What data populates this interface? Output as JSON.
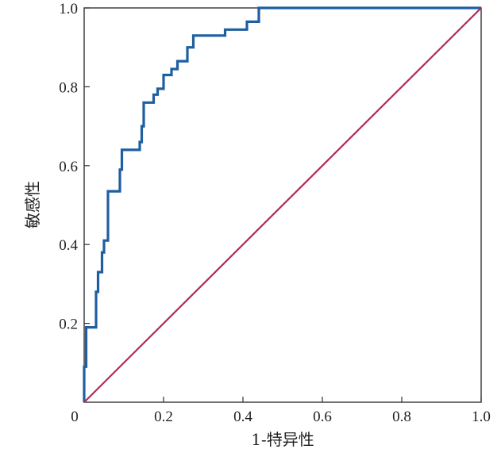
{
  "chart_data": {
    "type": "line",
    "title": "",
    "xlabel": "1-特异性",
    "ylabel": "敏感性",
    "xlim": [
      0,
      1
    ],
    "ylim": [
      0,
      1
    ],
    "x_ticks": [
      "0",
      "0.2",
      "0.4",
      "0.6",
      "0.8",
      "1.0"
    ],
    "y_ticks": [
      "0.2",
      "0.4",
      "0.6",
      "0.8",
      "1.0"
    ],
    "grid": false,
    "legend": "none",
    "series": [
      {
        "color": "#1f5fa0",
        "step": true,
        "points": [
          [
            0.0,
            0.0
          ],
          [
            0.0,
            0.09
          ],
          [
            0.005,
            0.09
          ],
          [
            0.005,
            0.19
          ],
          [
            0.03,
            0.19
          ],
          [
            0.03,
            0.28
          ],
          [
            0.035,
            0.28
          ],
          [
            0.035,
            0.33
          ],
          [
            0.045,
            0.33
          ],
          [
            0.045,
            0.38
          ],
          [
            0.05,
            0.38
          ],
          [
            0.05,
            0.41
          ],
          [
            0.06,
            0.41
          ],
          [
            0.06,
            0.535
          ],
          [
            0.09,
            0.535
          ],
          [
            0.09,
            0.59
          ],
          [
            0.095,
            0.59
          ],
          [
            0.095,
            0.64
          ],
          [
            0.14,
            0.64
          ],
          [
            0.14,
            0.66
          ],
          [
            0.145,
            0.66
          ],
          [
            0.145,
            0.7
          ],
          [
            0.15,
            0.7
          ],
          [
            0.15,
            0.76
          ],
          [
            0.175,
            0.76
          ],
          [
            0.175,
            0.78
          ],
          [
            0.185,
            0.78
          ],
          [
            0.185,
            0.795
          ],
          [
            0.2,
            0.795
          ],
          [
            0.2,
            0.83
          ],
          [
            0.22,
            0.83
          ],
          [
            0.22,
            0.845
          ],
          [
            0.235,
            0.845
          ],
          [
            0.235,
            0.865
          ],
          [
            0.26,
            0.865
          ],
          [
            0.26,
            0.9
          ],
          [
            0.275,
            0.9
          ],
          [
            0.275,
            0.93
          ],
          [
            0.355,
            0.93
          ],
          [
            0.355,
            0.945
          ],
          [
            0.41,
            0.945
          ],
          [
            0.41,
            0.965
          ],
          [
            0.44,
            0.965
          ],
          [
            0.44,
            1.0
          ],
          [
            1.0,
            1.0
          ]
        ]
      },
      {
        "color": "#b02a5c",
        "step": false,
        "points": [
          [
            0.0,
            0.0
          ],
          [
            1.0,
            1.0
          ]
        ]
      }
    ]
  }
}
